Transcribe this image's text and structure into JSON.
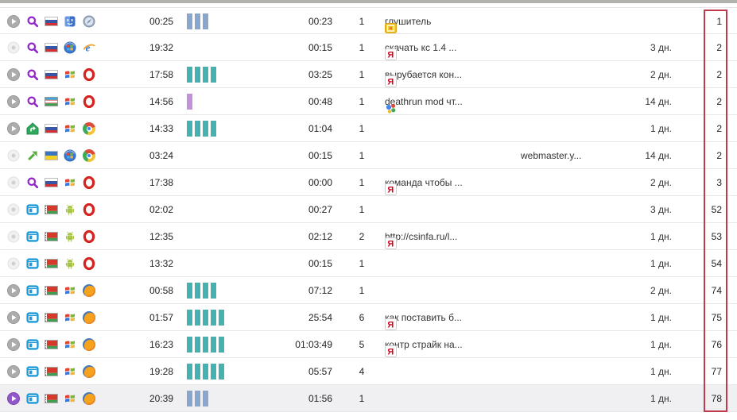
{
  "colors": {
    "bar_teal": "#47b1af",
    "bar_steel": "#8ba6cc",
    "bar_orchid": "#c490d8",
    "highlight_box_border": "#bf3b4b",
    "row_highlight_bg": "#f0eff1",
    "grid_line": "#e9e7e7",
    "top_bar": "#b3b1ae"
  },
  "table": {
    "rows": [
      {
        "play": "play",
        "source": "search",
        "flag": "ru",
        "os": "mac",
        "browser": "safari",
        "time": "00:25",
        "bars": {
          "n": 3,
          "c": "steel"
        },
        "duration": "00:23",
        "pages": "1",
        "engine": "yellow",
        "query": "глушитель",
        "referrer": "",
        "days": "",
        "count": "1",
        "highlighted": false
      },
      {
        "play": "dot",
        "source": "search",
        "flag": "ru",
        "os": "win7",
        "browser": "ie",
        "time": "19:32",
        "bars": {
          "n": 0,
          "c": "teal"
        },
        "duration": "00:15",
        "pages": "1",
        "engine": "yandex",
        "query": "скачать кс 1.4 ...",
        "referrer": "",
        "days": "3 дн.",
        "count": "2",
        "highlighted": false
      },
      {
        "play": "play",
        "source": "search",
        "flag": "ru",
        "os": "winxp",
        "browser": "opera",
        "time": "17:58",
        "bars": {
          "n": 4,
          "c": "teal"
        },
        "duration": "03:25",
        "pages": "1",
        "engine": "yandex",
        "query": "вырубается кон...",
        "referrer": "",
        "days": "2 дн.",
        "count": "2",
        "highlighted": false
      },
      {
        "play": "play",
        "source": "search",
        "flag": "uz",
        "os": "winxp",
        "browser": "opera",
        "time": "14:56",
        "bars": {
          "n": 1,
          "c": "orchid"
        },
        "duration": "00:48",
        "pages": "1",
        "engine": "google",
        "query": "deathrun mod чт...",
        "referrer": "",
        "days": "14 дн.",
        "count": "2",
        "highlighted": false
      },
      {
        "play": "play",
        "source": "home",
        "flag": "ru",
        "os": "winxp",
        "browser": "chrome",
        "time": "14:33",
        "bars": {
          "n": 4,
          "c": "teal"
        },
        "duration": "01:04",
        "pages": "1",
        "engine": "",
        "query": "",
        "referrer": "",
        "days": "1 дн.",
        "count": "2",
        "highlighted": false
      },
      {
        "play": "dot",
        "source": "link",
        "flag": "ua",
        "os": "win7",
        "browser": "chrome",
        "time": "03:24",
        "bars": {
          "n": 0,
          "c": "teal"
        },
        "duration": "00:15",
        "pages": "1",
        "engine": "",
        "query": "",
        "referrer": "webmaster.y...",
        "days": "14 дн.",
        "count": "2",
        "highlighted": false
      },
      {
        "play": "dot",
        "source": "search",
        "flag": "ru",
        "os": "winxp",
        "browser": "opera",
        "time": "17:38",
        "bars": {
          "n": 0,
          "c": "teal"
        },
        "duration": "00:00",
        "pages": "1",
        "engine": "yandex",
        "query": "команда чтобы ...",
        "referrer": "",
        "days": "2 дн.",
        "count": "3",
        "highlighted": false
      },
      {
        "play": "dot",
        "source": "window",
        "flag": "by",
        "os": "android",
        "browser": "opera",
        "time": "02:02",
        "bars": {
          "n": 0,
          "c": "teal"
        },
        "duration": "00:27",
        "pages": "1",
        "engine": "",
        "query": "",
        "referrer": "",
        "days": "3 дн.",
        "count": "52",
        "highlighted": false
      },
      {
        "play": "dot",
        "source": "window",
        "flag": "by",
        "os": "android",
        "browser": "opera",
        "time": "12:35",
        "bars": {
          "n": 0,
          "c": "teal"
        },
        "duration": "02:12",
        "pages": "2",
        "engine": "yandex",
        "query": "http://csinfa.ru/l...",
        "referrer": "",
        "days": "1 дн.",
        "count": "53",
        "highlighted": false
      },
      {
        "play": "dot",
        "source": "window",
        "flag": "by",
        "os": "android",
        "browser": "opera",
        "time": "13:32",
        "bars": {
          "n": 0,
          "c": "teal"
        },
        "duration": "00:15",
        "pages": "1",
        "engine": "",
        "query": "",
        "referrer": "",
        "days": "1 дн.",
        "count": "54",
        "highlighted": false
      },
      {
        "play": "play",
        "source": "window",
        "flag": "by",
        "os": "winxp",
        "browser": "firefox",
        "time": "00:58",
        "bars": {
          "n": 4,
          "c": "teal"
        },
        "duration": "07:12",
        "pages": "1",
        "engine": "",
        "query": "",
        "referrer": "",
        "days": "2 дн.",
        "count": "74",
        "highlighted": false
      },
      {
        "play": "play",
        "source": "window",
        "flag": "by",
        "os": "winxp",
        "browser": "firefox",
        "time": "01:57",
        "bars": {
          "n": 5,
          "c": "teal"
        },
        "duration": "25:54",
        "pages": "6",
        "engine": "yandex",
        "query": "как поставить б...",
        "referrer": "",
        "days": "1 дн.",
        "count": "75",
        "highlighted": false
      },
      {
        "play": "play",
        "source": "window",
        "flag": "by",
        "os": "winxp",
        "browser": "firefox",
        "time": "16:23",
        "bars": {
          "n": 5,
          "c": "teal"
        },
        "duration": "01:03:49",
        "pages": "5",
        "engine": "yandex",
        "query": "контр страйк на...",
        "referrer": "",
        "days": "1 дн.",
        "count": "76",
        "highlighted": false
      },
      {
        "play": "play",
        "source": "window",
        "flag": "by",
        "os": "winxp",
        "browser": "firefox",
        "time": "19:28",
        "bars": {
          "n": 5,
          "c": "teal"
        },
        "duration": "05:57",
        "pages": "4",
        "engine": "",
        "query": "",
        "referrer": "",
        "days": "1 дн.",
        "count": "77",
        "highlighted": false
      },
      {
        "play": "play-active",
        "source": "window",
        "flag": "by",
        "os": "winxp",
        "browser": "firefox",
        "time": "20:39",
        "bars": {
          "n": 3,
          "c": "steel"
        },
        "duration": "01:56",
        "pages": "1",
        "engine": "",
        "query": "",
        "referrer": "",
        "days": "1 дн.",
        "count": "78",
        "highlighted": true
      }
    ]
  }
}
